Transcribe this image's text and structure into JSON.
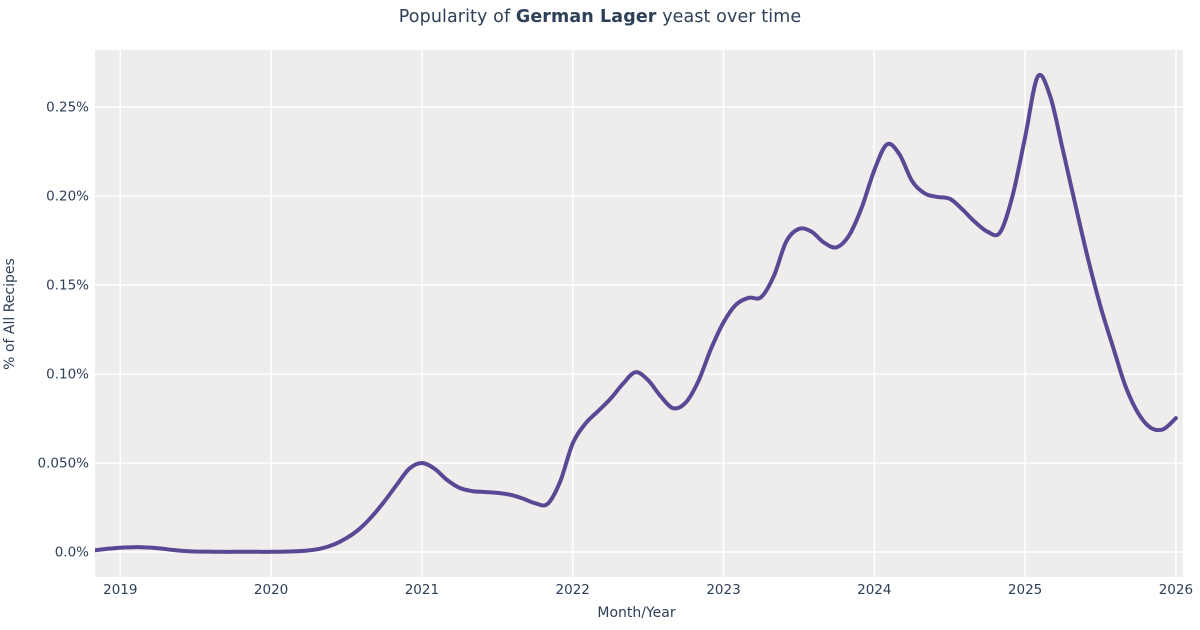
{
  "title": {
    "prefix": "Popularity of ",
    "emphasis": "German Lager",
    "suffix": " yeast over time"
  },
  "axes": {
    "x": {
      "label": "Month/Year",
      "ticks": [
        {
          "value": 2019,
          "label": "2019"
        },
        {
          "value": 2020,
          "label": "2020"
        },
        {
          "value": 2021,
          "label": "2021"
        },
        {
          "value": 2022,
          "label": "2022"
        },
        {
          "value": 2023,
          "label": "2023"
        },
        {
          "value": 2024,
          "label": "2024"
        },
        {
          "value": 2025,
          "label": "2025"
        },
        {
          "value": 2026,
          "label": "2026"
        }
      ]
    },
    "y": {
      "label": "% of All Recipes",
      "ticks": [
        {
          "value": 0.0,
          "label": "0.0%"
        },
        {
          "value": 0.05,
          "label": "0.050%"
        },
        {
          "value": 0.1,
          "label": "0.10%"
        },
        {
          "value": 0.15,
          "label": "0.15%"
        },
        {
          "value": 0.2,
          "label": "0.20%"
        },
        {
          "value": 0.25,
          "label": "0.25%"
        }
      ]
    }
  },
  "colors": {
    "line": "#5b4894",
    "panel_background": "#efedeb",
    "grid": "#ffffff",
    "text": "#2e4057"
  },
  "chart_data": {
    "type": "line",
    "title": "Popularity of German Lager yeast over time",
    "xlabel": "Month/Year",
    "ylabel": "% of All Recipes",
    "x_range_years": [
      2018.833,
      2026.0
    ],
    "ylim_percent": [
      -0.014,
      0.282
    ],
    "grid": true,
    "legend": false,
    "series": [
      {
        "name": "German Lager",
        "color": "#5b4894",
        "points": [
          {
            "month": "2018-11",
            "percent": 0.001
          },
          {
            "month": "2018-12",
            "percent": 0.0018
          },
          {
            "month": "2019-01",
            "percent": 0.0024
          },
          {
            "month": "2019-02",
            "percent": 0.0027
          },
          {
            "month": "2019-03",
            "percent": 0.0026
          },
          {
            "month": "2019-04",
            "percent": 0.0021
          },
          {
            "month": "2019-05",
            "percent": 0.0013
          },
          {
            "month": "2019-06",
            "percent": 0.0006
          },
          {
            "month": "2019-07",
            "percent": 0.0003
          },
          {
            "month": "2019-08",
            "percent": 0.0002
          },
          {
            "month": "2019-09",
            "percent": 0.0001
          },
          {
            "month": "2019-10",
            "percent": 0.0001
          },
          {
            "month": "2019-11",
            "percent": 0.0001
          },
          {
            "month": "2019-12",
            "percent": 0.0001
          },
          {
            "month": "2020-01",
            "percent": 0.0001
          },
          {
            "month": "2020-02",
            "percent": 0.0002
          },
          {
            "month": "2020-03",
            "percent": 0.0004
          },
          {
            "month": "2020-04",
            "percent": 0.0009
          },
          {
            "month": "2020-05",
            "percent": 0.002
          },
          {
            "month": "2020-06",
            "percent": 0.0042
          },
          {
            "month": "2020-07",
            "percent": 0.0078
          },
          {
            "month": "2020-08",
            "percent": 0.0128
          },
          {
            "month": "2020-09",
            "percent": 0.0198
          },
          {
            "month": "2020-10",
            "percent": 0.0283
          },
          {
            "month": "2020-11",
            "percent": 0.0378
          },
          {
            "month": "2020-12",
            "percent": 0.0468
          },
          {
            "month": "2021-01",
            "percent": 0.05
          },
          {
            "month": "2021-02",
            "percent": 0.0468
          },
          {
            "month": "2021-03",
            "percent": 0.0405
          },
          {
            "month": "2021-04",
            "percent": 0.036
          },
          {
            "month": "2021-05",
            "percent": 0.0342
          },
          {
            "month": "2021-06",
            "percent": 0.0337
          },
          {
            "month": "2021-07",
            "percent": 0.0332
          },
          {
            "month": "2021-08",
            "percent": 0.0322
          },
          {
            "month": "2021-09",
            "percent": 0.0301
          },
          {
            "month": "2021-10",
            "percent": 0.0274
          },
          {
            "month": "2021-11",
            "percent": 0.027
          },
          {
            "month": "2021-12",
            "percent": 0.0395
          },
          {
            "month": "2022-01",
            "percent": 0.061
          },
          {
            "month": "2022-02",
            "percent": 0.072
          },
          {
            "month": "2022-03",
            "percent": 0.079
          },
          {
            "month": "2022-04",
            "percent": 0.086
          },
          {
            "month": "2022-05",
            "percent": 0.0945
          },
          {
            "month": "2022-06",
            "percent": 0.101
          },
          {
            "month": "2022-07",
            "percent": 0.0965
          },
          {
            "month": "2022-08",
            "percent": 0.0875
          },
          {
            "month": "2022-09",
            "percent": 0.0808
          },
          {
            "month": "2022-10",
            "percent": 0.084
          },
          {
            "month": "2022-11",
            "percent": 0.096
          },
          {
            "month": "2022-12",
            "percent": 0.114
          },
          {
            "month": "2023-01",
            "percent": 0.129
          },
          {
            "month": "2023-02",
            "percent": 0.139
          },
          {
            "month": "2023-03",
            "percent": 0.1428
          },
          {
            "month": "2023-04",
            "percent": 0.1432
          },
          {
            "month": "2023-05",
            "percent": 0.155
          },
          {
            "month": "2023-06",
            "percent": 0.1745
          },
          {
            "month": "2023-07",
            "percent": 0.1815
          },
          {
            "month": "2023-08",
            "percent": 0.18
          },
          {
            "month": "2023-09",
            "percent": 0.1738
          },
          {
            "month": "2023-10",
            "percent": 0.1712
          },
          {
            "month": "2023-11",
            "percent": 0.178
          },
          {
            "month": "2023-12",
            "percent": 0.1935
          },
          {
            "month": "2024-01",
            "percent": 0.2145
          },
          {
            "month": "2024-02",
            "percent": 0.229
          },
          {
            "month": "2024-03",
            "percent": 0.2235
          },
          {
            "month": "2024-04",
            "percent": 0.2085
          },
          {
            "month": "2024-05",
            "percent": 0.2015
          },
          {
            "month": "2024-06",
            "percent": 0.1995
          },
          {
            "month": "2024-07",
            "percent": 0.1985
          },
          {
            "month": "2024-08",
            "percent": 0.1925
          },
          {
            "month": "2024-09",
            "percent": 0.1855
          },
          {
            "month": "2024-10",
            "percent": 0.18
          },
          {
            "month": "2024-11",
            "percent": 0.1795
          },
          {
            "month": "2024-12",
            "percent": 0.2
          },
          {
            "month": "2025-01",
            "percent": 0.233
          },
          {
            "month": "2025-02",
            "percent": 0.267
          },
          {
            "month": "2025-03",
            "percent": 0.256
          },
          {
            "month": "2025-04",
            "percent": 0.226
          },
          {
            "month": "2025-05",
            "percent": 0.195
          },
          {
            "month": "2025-06",
            "percent": 0.165
          },
          {
            "month": "2025-07",
            "percent": 0.138
          },
          {
            "month": "2025-08",
            "percent": 0.115
          },
          {
            "month": "2025-09",
            "percent": 0.093
          },
          {
            "month": "2025-10",
            "percent": 0.078
          },
          {
            "month": "2025-11",
            "percent": 0.0698
          },
          {
            "month": "2025-12",
            "percent": 0.069
          },
          {
            "month": "2026-01",
            "percent": 0.0752
          }
        ]
      }
    ]
  }
}
